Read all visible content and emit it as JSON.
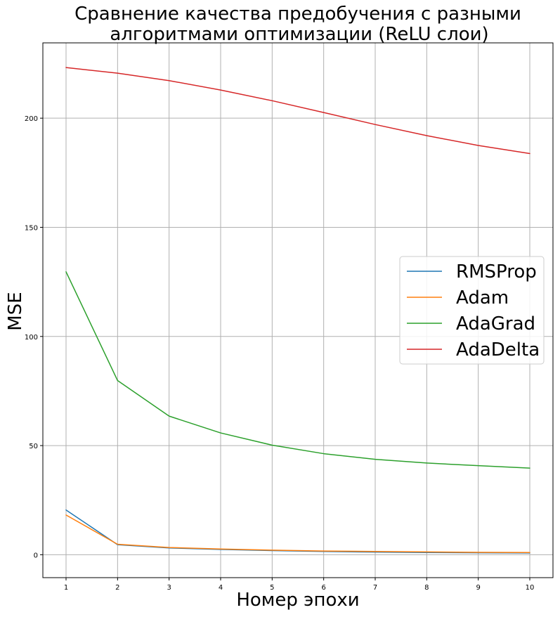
{
  "chart_data": {
    "type": "line",
    "title": "Сравнение качества предобучения с разными алгоритмами оптимизации (ReLU слои)",
    "title_lines": [
      "Сравнение качества предобучения с разными",
      "алгоритмами оптимизации (ReLU слои)"
    ],
    "xlabel": "Номер эпохи",
    "ylabel": "MSE",
    "x": [
      1,
      2,
      3,
      4,
      5,
      6,
      7,
      8,
      9,
      10
    ],
    "xticks": [
      "1",
      "2",
      "3",
      "4",
      "5",
      "6",
      "7",
      "8",
      "9",
      "10"
    ],
    "yticks": [
      "0",
      "50",
      "100",
      "150",
      "200"
    ],
    "xlim": [
      0.55,
      10.45
    ],
    "ylim": [
      -10.5,
      234.5
    ],
    "grid": true,
    "legend_position": "right",
    "series": [
      {
        "name": "RMSProp",
        "color": "#1f77b4",
        "values": [
          20.5,
          4.6,
          3.1,
          2.4,
          1.9,
          1.5,
          1.2,
          1.0,
          0.9,
          0.8
        ]
      },
      {
        "name": "Adam",
        "color": "#ff7f0e",
        "values": [
          18.2,
          4.8,
          3.3,
          2.6,
          2.1,
          1.7,
          1.5,
          1.3,
          1.1,
          1.0
        ]
      },
      {
        "name": "AdaGrad",
        "color": "#2ca02c",
        "values": [
          129.6,
          79.8,
          63.5,
          55.8,
          50.2,
          46.3,
          43.7,
          42.0,
          40.8,
          39.7
        ]
      },
      {
        "name": "AdaDelta",
        "color": "#d62728",
        "values": [
          223.2,
          220.6,
          217.2,
          212.9,
          208.0,
          202.6,
          197.1,
          192.0,
          187.5,
          183.8
        ]
      }
    ]
  }
}
